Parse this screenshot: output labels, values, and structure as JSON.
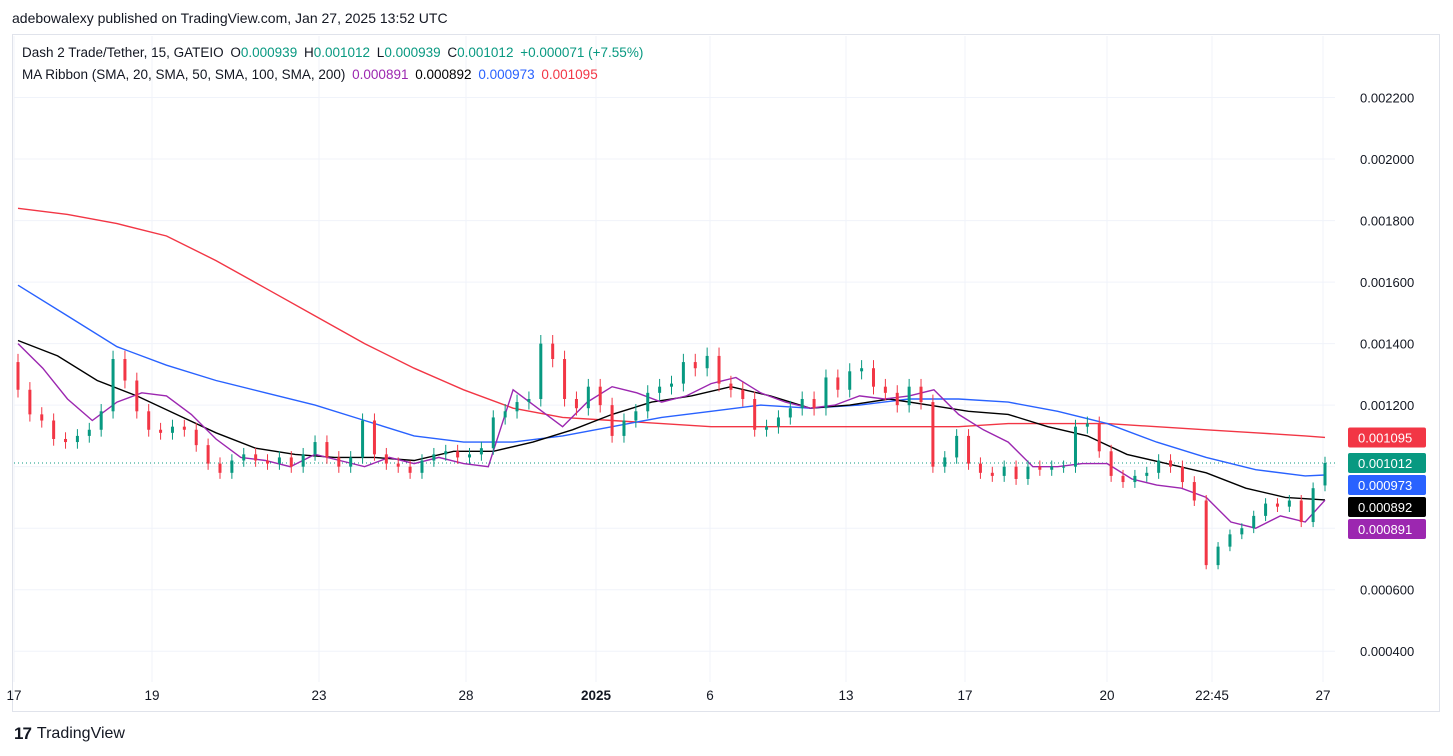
{
  "header": {
    "published_line": "adebowalexy published on TradingView.com, Jan 27, 2025 13:52 UTC"
  },
  "legend": {
    "symbol": "Dash 2 Trade/Tether, 15, GATEIO",
    "o_label": "O",
    "o_value": "0.000939",
    "h_label": "H",
    "h_value": "0.001012",
    "l_label": "L",
    "l_value": "0.000939",
    "c_label": "C",
    "c_value": "0.001012",
    "change": "+0.000071 (+7.55%)",
    "ma_title": "MA Ribbon (SMA, 20, SMA, 50, SMA, 100, SMA, 200)",
    "ma_values": [
      "0.000891",
      "0.000892",
      "0.000973",
      "0.001095"
    ]
  },
  "footer": {
    "brand_logo": "17",
    "brand_text": "TradingView"
  },
  "colors": {
    "up": "#089981",
    "down": "#f23645",
    "sma20": "#9c27b0",
    "sma50": "#000000",
    "sma100": "#2962ff",
    "sma200": "#f23645",
    "grid": "#f0f3fa",
    "axis_text": "#131722"
  },
  "chart_data": {
    "type": "line",
    "title": "Dash 2 Trade/Tether, 15, GATEIO",
    "y_ticks": [
      "0.000400",
      "0.000600",
      "0.000800",
      "0.001000",
      "0.001200",
      "0.001400",
      "0.001600",
      "0.001800",
      "0.002000",
      "0.002200"
    ],
    "y_range": [
      0.0003,
      0.0024
    ],
    "x_ticks": [
      "17",
      "19",
      "23",
      "28",
      "2025",
      "6",
      "13",
      "17",
      "20",
      "22:45",
      "27"
    ],
    "last_price": 0.001012,
    "price_labels": [
      {
        "text": "0.001095",
        "value": 0.001095,
        "color": "#f23645",
        "text_color": "#ffffff"
      },
      {
        "text": "0.001012",
        "value": 0.001012,
        "color": "#089981",
        "text_color": "#ffffff"
      },
      {
        "text": "0.000973",
        "value": 0.000973,
        "color": "#2962ff",
        "text_color": "#ffffff"
      },
      {
        "text": "0.000892",
        "value": 0.000892,
        "color": "#000000",
        "text_color": "#ffffff"
      },
      {
        "text": "0.000891",
        "value": 0.000891,
        "color": "#9c27b0",
        "text_color": "#ffffff"
      }
    ],
    "series": [
      {
        "name": "SMA 200",
        "color": "#f23645",
        "x": [
          0,
          50,
          100,
          150,
          200,
          250,
          300,
          350,
          400,
          450,
          500,
          550,
          600,
          650,
          700,
          750,
          800,
          850,
          900,
          950,
          1000,
          1050,
          1100,
          1150,
          1200,
          1250,
          1300,
          1320
        ],
        "y": [
          0.00184,
          0.00182,
          0.00179,
          0.00175,
          0.00167,
          0.00158,
          0.00149,
          0.0014,
          0.00132,
          0.00125,
          0.00119,
          0.00116,
          0.00115,
          0.00114,
          0.00113,
          0.00113,
          0.00113,
          0.00113,
          0.00113,
          0.00113,
          0.00114,
          0.00114,
          0.00114,
          0.00113,
          0.00112,
          0.00111,
          0.0011,
          0.001095
        ]
      },
      {
        "name": "SMA 100",
        "color": "#2962ff",
        "x": [
          0,
          50,
          100,
          150,
          200,
          250,
          300,
          350,
          400,
          450,
          500,
          550,
          600,
          650,
          700,
          750,
          800,
          850,
          900,
          950,
          1000,
          1050,
          1100,
          1150,
          1200,
          1250,
          1300,
          1320
        ],
        "y": [
          0.00159,
          0.00149,
          0.00139,
          0.00133,
          0.00128,
          0.00124,
          0.0012,
          0.00115,
          0.0011,
          0.00108,
          0.00108,
          0.0011,
          0.00113,
          0.00116,
          0.00118,
          0.0012,
          0.00119,
          0.0012,
          0.00122,
          0.00122,
          0.00121,
          0.00118,
          0.00114,
          0.00108,
          0.00103,
          0.00099,
          0.00097,
          0.000973
        ]
      },
      {
        "name": "SMA 50",
        "color": "#000000",
        "x": [
          0,
          40,
          80,
          120,
          160,
          200,
          240,
          280,
          320,
          360,
          400,
          440,
          480,
          520,
          560,
          600,
          640,
          680,
          720,
          760,
          800,
          840,
          880,
          920,
          960,
          1000,
          1040,
          1080,
          1120,
          1160,
          1200,
          1240,
          1280,
          1320
        ],
        "y": [
          0.00141,
          0.00136,
          0.00128,
          0.00123,
          0.00117,
          0.00111,
          0.00106,
          0.00104,
          0.00103,
          0.00103,
          0.00102,
          0.00105,
          0.00105,
          0.00108,
          0.00112,
          0.00117,
          0.00121,
          0.00123,
          0.00126,
          0.00123,
          0.00119,
          0.0012,
          0.00122,
          0.0012,
          0.00118,
          0.00117,
          0.00113,
          0.0011,
          0.00104,
          0.00101,
          0.00098,
          0.00093,
          0.0009,
          0.000892
        ]
      },
      {
        "name": "SMA 20",
        "color": "#9c27b0",
        "x": [
          0,
          25,
          50,
          75,
          100,
          125,
          150,
          175,
          200,
          225,
          250,
          275,
          300,
          325,
          350,
          375,
          400,
          425,
          450,
          475,
          500,
          525,
          550,
          575,
          600,
          625,
          650,
          675,
          700,
          725,
          750,
          775,
          800,
          825,
          850,
          875,
          900,
          925,
          950,
          975,
          1000,
          1025,
          1050,
          1075,
          1100,
          1125,
          1150,
          1175,
          1200,
          1225,
          1250,
          1275,
          1300,
          1320
        ],
        "y": [
          0.0014,
          0.00132,
          0.00122,
          0.00115,
          0.00121,
          0.00124,
          0.00123,
          0.00117,
          0.00109,
          0.00103,
          0.00102,
          0.001,
          0.00104,
          0.00102,
          0.001,
          0.00103,
          0.00101,
          0.00103,
          0.00101,
          0.001,
          0.00125,
          0.00119,
          0.00113,
          0.00121,
          0.00126,
          0.00124,
          0.00121,
          0.00123,
          0.00127,
          0.00129,
          0.00124,
          0.00121,
          0.00119,
          0.0012,
          0.00123,
          0.00122,
          0.00123,
          0.00125,
          0.00117,
          0.00112,
          0.00108,
          0.001,
          0.001,
          0.00101,
          0.00101,
          0.00096,
          0.00094,
          0.00093,
          0.0009,
          0.00082,
          0.0008,
          0.00084,
          0.00082,
          0.000891
        ]
      },
      {
        "name": "Candles",
        "color": "#089981",
        "note_only": "",
        "x": [
          0,
          12,
          24,
          36,
          48,
          60,
          72,
          84,
          96,
          108,
          120,
          132,
          144,
          156,
          168,
          180,
          192,
          204,
          216,
          228,
          240,
          252,
          264,
          276,
          288,
          300,
          312,
          324,
          336,
          348,
          360,
          372,
          384,
          396,
          408,
          420,
          432,
          444,
          456,
          468,
          480,
          492,
          504,
          516,
          528,
          540,
          552,
          564,
          576,
          588,
          600,
          612,
          624,
          636,
          648,
          660,
          672,
          684,
          696,
          708,
          720,
          732,
          744,
          756,
          768,
          780,
          792,
          804,
          816,
          828,
          840,
          852,
          864,
          876,
          888,
          900,
          912,
          924,
          936,
          948,
          960,
          972,
          984,
          996,
          1008,
          1020,
          1032,
          1044,
          1056,
          1068,
          1080,
          1092,
          1104,
          1116,
          1128,
          1140,
          1152,
          1164,
          1176,
          1188,
          1200,
          1212,
          1224,
          1236,
          1248,
          1260,
          1272,
          1284,
          1296,
          1308,
          1320
        ],
        "open": [
          0.00134,
          0.00125,
          0.00117,
          0.00115,
          0.00109,
          0.00108,
          0.0011,
          0.00112,
          0.00118,
          0.00135,
          0.00128,
          0.00118,
          0.00112,
          0.00111,
          0.00113,
          0.00112,
          0.00107,
          0.00101,
          0.00098,
          0.00102,
          0.00104,
          0.00102,
          0.00101,
          0.00103,
          0.001,
          0.00104,
          0.00108,
          0.00103,
          0.001,
          0.00103,
          0.00115,
          0.00104,
          0.00101,
          0.001,
          0.00098,
          0.00102,
          0.00104,
          0.00105,
          0.00103,
          0.00104,
          0.00106,
          0.00116,
          0.00118,
          0.00121,
          0.00122,
          0.0014,
          0.00135,
          0.00122,
          0.00119,
          0.00126,
          0.0012,
          0.0011,
          0.00115,
          0.00118,
          0.00124,
          0.00126,
          0.00127,
          0.00134,
          0.00132,
          0.00136,
          0.00127,
          0.00125,
          0.00122,
          0.00112,
          0.00113,
          0.00116,
          0.00119,
          0.00122,
          0.00119,
          0.00129,
          0.00125,
          0.00131,
          0.00132,
          0.00126,
          0.00124,
          0.0012,
          0.00126,
          0.00121,
          0.001,
          0.00103,
          0.0011,
          0.00101,
          0.00098,
          0.00097,
          0.001,
          0.00096,
          0.001,
          0.00099,
          0.001,
          0.001,
          0.00113,
          0.00114,
          0.00105,
          0.00097,
          0.00095,
          0.00097,
          0.00098,
          0.00102,
          0.001,
          0.00095,
          0.00089,
          0.00068,
          0.00074,
          0.00078,
          0.0008,
          0.00084,
          0.00088,
          0.00087,
          0.00089,
          0.00082,
          0.000939
        ],
        "close": [
          0.00125,
          0.00117,
          0.00115,
          0.00109,
          0.00108,
          0.0011,
          0.00112,
          0.00118,
          0.00135,
          0.00128,
          0.00118,
          0.00112,
          0.00111,
          0.00113,
          0.00112,
          0.00107,
          0.00101,
          0.00098,
          0.00102,
          0.00104,
          0.00102,
          0.00101,
          0.00103,
          0.001,
          0.00104,
          0.00108,
          0.00103,
          0.001,
          0.00103,
          0.00115,
          0.00104,
          0.00101,
          0.001,
          0.00098,
          0.00102,
          0.00104,
          0.00105,
          0.00103,
          0.00104,
          0.00106,
          0.00116,
          0.00118,
          0.00121,
          0.00122,
          0.0014,
          0.00135,
          0.00122,
          0.00119,
          0.00126,
          0.0012,
          0.0011,
          0.00115,
          0.00118,
          0.00124,
          0.00126,
          0.00127,
          0.00134,
          0.00132,
          0.00136,
          0.00127,
          0.00125,
          0.00122,
          0.00112,
          0.00113,
          0.00116,
          0.00119,
          0.00122,
          0.00119,
          0.00129,
          0.00125,
          0.00131,
          0.00132,
          0.00126,
          0.00124,
          0.0012,
          0.00126,
          0.00121,
          0.001,
          0.00103,
          0.0011,
          0.00101,
          0.00098,
          0.00097,
          0.001,
          0.00096,
          0.001,
          0.00099,
          0.001,
          0.001,
          0.00113,
          0.00114,
          0.00105,
          0.00097,
          0.00095,
          0.00097,
          0.00098,
          0.00102,
          0.001,
          0.00095,
          0.00089,
          0.00068,
          0.00074,
          0.00078,
          0.0008,
          0.00084,
          0.00088,
          0.00087,
          0.00089,
          0.00082,
          0.00093,
          0.001012
        ]
      }
    ]
  }
}
